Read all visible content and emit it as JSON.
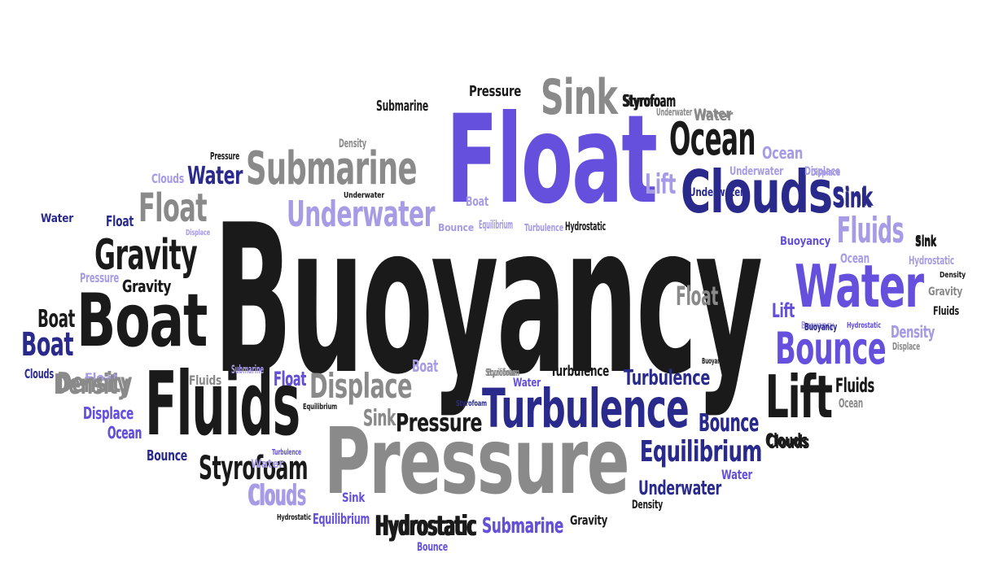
{
  "palette": {
    "black": "#1a1a1a",
    "gray": "#8a8a8a",
    "violet": "#6450dc",
    "navy": "#2a2a8c",
    "lavender": "#a89be6"
  },
  "words": [
    {
      "text": "Buoyancy",
      "color": "black",
      "weight": 100
    },
    {
      "text": "Float",
      "color": "violet",
      "weight": 62
    },
    {
      "text": "Pressure",
      "color": "gray",
      "weight": 50
    },
    {
      "text": "Fluids",
      "color": "black",
      "weight": 30
    },
    {
      "text": "Turbulence",
      "color": "navy",
      "weight": 22
    },
    {
      "text": "Boat",
      "color": "black",
      "weight": 29
    },
    {
      "text": "Water",
      "color": "violet",
      "weight": 27
    },
    {
      "text": "Clouds",
      "color": "navy",
      "weight": 25
    },
    {
      "text": "Lift",
      "color": "black",
      "weight": 22
    },
    {
      "text": "Ocean",
      "color": "black",
      "weight": 18
    },
    {
      "text": "Submarine",
      "color": "gray",
      "weight": 16
    },
    {
      "text": "Sink",
      "color": "gray",
      "weight": 19
    },
    {
      "text": "Bounce",
      "color": "violet",
      "weight": 15
    },
    {
      "text": "Gravity",
      "color": "black",
      "weight": 15
    },
    {
      "text": "Underwater",
      "color": "lavender",
      "weight": 13
    },
    {
      "text": "Float",
      "color": "gray",
      "weight": 15
    },
    {
      "text": "Styrofoam",
      "color": "black",
      "weight": 11
    },
    {
      "text": "Equilibrium",
      "color": "navy",
      "weight": 10
    },
    {
      "text": "Displace",
      "color": "gray",
      "weight": 11
    },
    {
      "text": "Fluids",
      "color": "lavender",
      "weight": 12
    },
    {
      "text": "Boat",
      "color": "navy",
      "weight": 11
    },
    {
      "text": "Density",
      "color": "gray",
      "weight": 10
    },
    {
      "text": "Lift",
      "color": "lavender",
      "weight": 11
    },
    {
      "text": "Buoyancy",
      "color": "violet",
      "weight": 8
    },
    {
      "text": "Clouds",
      "color": "lavender",
      "weight": 9
    },
    {
      "text": "Hydrostatic",
      "color": "black",
      "weight": 9
    },
    {
      "text": "Submarine",
      "color": "navy",
      "weight": 8
    },
    {
      "text": "Underwater",
      "color": "navy",
      "weight": 8
    },
    {
      "text": "Boat",
      "color": "black",
      "weight": 8
    },
    {
      "text": "Pressure",
      "color": "black",
      "weight": 8
    },
    {
      "text": "Turbulence",
      "color": "navy",
      "weight": 8
    },
    {
      "text": "Water",
      "color": "navy",
      "weight": 8
    },
    {
      "text": "Sink",
      "color": "navy",
      "weight": 8
    },
    {
      "text": "Bounce",
      "color": "navy",
      "weight": 8
    },
    {
      "text": "Float",
      "color": "gray",
      "weight": 8
    },
    {
      "text": "Density",
      "color": "lavender",
      "weight": 6
    },
    {
      "text": "Ocean",
      "color": "lavender",
      "weight": 7
    },
    {
      "text": "Lift",
      "color": "gray",
      "weight": 7
    },
    {
      "text": "Float",
      "color": "lavender",
      "weight": 6
    },
    {
      "text": "Displace",
      "color": "lavender",
      "weight": 6
    },
    {
      "text": "Ocean",
      "color": "navy",
      "weight": 6
    },
    {
      "text": "Gravity",
      "color": "black",
      "weight": 6
    },
    {
      "text": "Fluids",
      "color": "black",
      "weight": 6
    },
    {
      "text": "Clouds",
      "color": "black",
      "weight": 6
    },
    {
      "text": "Sink",
      "color": "gray",
      "weight": 5
    },
    {
      "text": "Pressure",
      "color": "black",
      "weight": 6
    },
    {
      "text": "Float",
      "color": "navy",
      "weight": 5
    },
    {
      "text": "Boat",
      "color": "lavender",
      "weight": 5
    },
    {
      "text": "Sink",
      "color": "black",
      "weight": 4
    },
    {
      "text": "Water",
      "color": "lavender",
      "weight": 4
    },
    {
      "text": "Styrofoam",
      "color": "black",
      "weight": 4
    },
    {
      "text": "Water",
      "color": "gray",
      "weight": 4
    },
    {
      "text": "Submarine",
      "color": "black",
      "weight": 4
    },
    {
      "text": "Equilibrium",
      "color": "gray",
      "weight": 3
    },
    {
      "text": "Density",
      "color": "gray",
      "weight": 3
    },
    {
      "text": "Pressure",
      "color": "black",
      "weight": 3
    },
    {
      "text": "Underwater",
      "color": "lavender",
      "weight": 3
    },
    {
      "text": "Displace",
      "color": "lavender",
      "weight": 3
    },
    {
      "text": "Underwater",
      "color": "black",
      "weight": 3
    },
    {
      "text": "Boat",
      "color": "lavender",
      "weight": 3
    },
    {
      "text": "Bounce",
      "color": "lavender",
      "weight": 3
    },
    {
      "text": "Equilibrium",
      "color": "lavender",
      "weight": 3
    },
    {
      "text": "Turbulence",
      "color": "lavender",
      "weight": 3
    },
    {
      "text": "Hydrostatic",
      "color": "black",
      "weight": 3
    },
    {
      "text": "Buoyancy",
      "color": "lavender",
      "weight": 3
    },
    {
      "text": "Clouds",
      "color": "lavender",
      "weight": 4
    },
    {
      "text": "Water",
      "color": "navy",
      "weight": 4
    },
    {
      "text": "Float",
      "color": "navy",
      "weight": 4
    },
    {
      "text": "Displace",
      "color": "lavender",
      "weight": 2
    },
    {
      "text": "Pressure",
      "color": "lavender",
      "weight": 3
    },
    {
      "text": "Gravity",
      "color": "black",
      "weight": 5
    },
    {
      "text": "Clouds",
      "color": "navy",
      "weight": 3
    },
    {
      "text": "Density",
      "color": "gray",
      "weight": 6
    },
    {
      "text": "Submarine",
      "color": "lavender",
      "weight": 2
    },
    {
      "text": "Fluids",
      "color": "gray",
      "weight": 3
    },
    {
      "text": "Float",
      "color": "violet",
      "weight": 4
    },
    {
      "text": "Equilibrium",
      "color": "black",
      "weight": 2
    },
    {
      "text": "Displace",
      "color": "violet",
      "weight": 5
    },
    {
      "text": "Ocean",
      "color": "violet",
      "weight": 5
    },
    {
      "text": "Sink",
      "color": "gray",
      "weight": 4
    },
    {
      "text": "Pressure",
      "color": "black",
      "weight": 5
    },
    {
      "text": "Styrofoam",
      "color": "gray",
      "weight": 2
    },
    {
      "text": "Water",
      "color": "violet",
      "weight": 3
    },
    {
      "text": "Turbulence",
      "color": "black",
      "weight": 4
    },
    {
      "text": "Styrofoam",
      "color": "navy",
      "weight": 2
    },
    {
      "text": "Bounce",
      "color": "navy",
      "weight": 4
    },
    {
      "text": "Turbulence",
      "color": "violet",
      "weight": 2
    },
    {
      "text": "Clouds",
      "color": "lavender",
      "weight": 6
    },
    {
      "text": "Sink",
      "color": "violet",
      "weight": 3
    },
    {
      "text": "Hydrostatic",
      "color": "black",
      "weight": 2
    },
    {
      "text": "Equilibrium",
      "color": "violet",
      "weight": 4
    },
    {
      "text": "Hydrostatic",
      "color": "black",
      "weight": 8
    },
    {
      "text": "Submarine",
      "color": "violet",
      "weight": 6
    },
    {
      "text": "Gravity",
      "color": "black",
      "weight": 3
    },
    {
      "text": "Density",
      "color": "black",
      "weight": 2
    },
    {
      "text": "Bounce",
      "color": "violet",
      "weight": 2
    },
    {
      "text": "Equilibrium",
      "color": "navy",
      "weight": 12
    },
    {
      "text": "Underwater",
      "color": "navy",
      "weight": 7
    },
    {
      "text": "Water",
      "color": "violet",
      "weight": 4
    },
    {
      "text": "Clouds",
      "color": "black",
      "weight": 5
    },
    {
      "text": "Fluids",
      "color": "black",
      "weight": 5
    },
    {
      "text": "Ocean",
      "color": "gray",
      "weight": 3
    },
    {
      "text": "Bounce",
      "color": "navy",
      "weight": 6
    },
    {
      "text": "Lift",
      "color": "black",
      "weight": 16
    },
    {
      "text": "Sink",
      "color": "navy",
      "weight": 5
    },
    {
      "text": "Fluids",
      "color": "lavender",
      "weight": 7
    },
    {
      "text": "Sink",
      "color": "black",
      "weight": 4
    },
    {
      "text": "Hydrostatic",
      "color": "lavender",
      "weight": 3
    },
    {
      "text": "Density",
      "color": "black",
      "weight": 2
    },
    {
      "text": "Gravity",
      "color": "gray",
      "weight": 3
    },
    {
      "text": "Fluids",
      "color": "black",
      "weight": 3
    },
    {
      "text": "Lift",
      "color": "violet",
      "weight": 5
    },
    {
      "text": "Buoyancy",
      "color": "navy",
      "weight": 2
    },
    {
      "text": "Hydrostatic",
      "color": "violet",
      "weight": 2
    },
    {
      "text": "Density",
      "color": "lavender",
      "weight": 4
    },
    {
      "text": "Displace",
      "color": "gray",
      "weight": 2
    },
    {
      "text": "Styrofoam",
      "color": "black",
      "weight": 5
    },
    {
      "text": "Underwater",
      "color": "gray",
      "weight": 2
    },
    {
      "text": "Water",
      "color": "gray",
      "weight": 4
    },
    {
      "text": "Ocean",
      "color": "lavender",
      "weight": 5
    },
    {
      "text": "Displace",
      "color": "lavender",
      "weight": 3
    },
    {
      "text": "Buoyancy",
      "color": "black",
      "weight": 4
    },
    {
      "text": "Sink",
      "color": "black",
      "weight": 3
    }
  ]
}
